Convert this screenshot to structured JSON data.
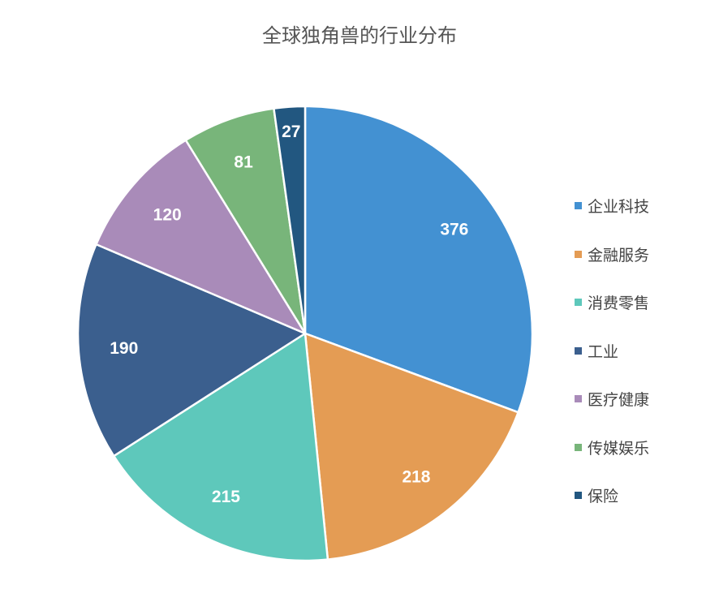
{
  "chart_data": {
    "type": "pie",
    "title": "全球独角兽的行业分布",
    "categories": [
      "企业科技",
      "金融服务",
      "消费零售",
      "工业",
      "医疗健康",
      "传媒娱乐",
      "保险"
    ],
    "values": [
      376,
      218,
      215,
      190,
      120,
      81,
      27
    ],
    "colors": [
      "#4391d2",
      "#e49c54",
      "#5ec8bb",
      "#3b5f8e",
      "#a98bb9",
      "#78b57a",
      "#225780"
    ],
    "legend": "right",
    "data_labels": true,
    "start_angle": "12 o'clock",
    "direction": "clockwise"
  }
}
